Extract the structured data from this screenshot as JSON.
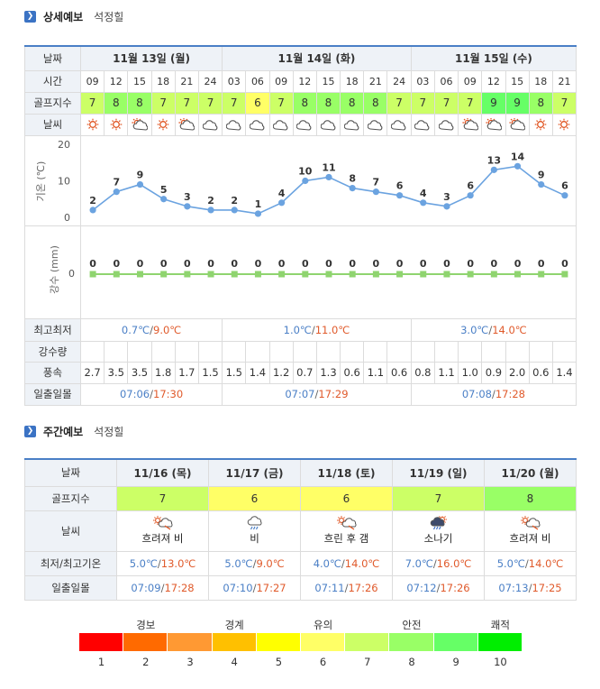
{
  "detail": {
    "title": "상세예보",
    "place": "석정힐",
    "labels": {
      "date": "날짜",
      "time": "시간",
      "golf": "골프지수",
      "weather": "날씨",
      "temp_axis": "기온 (℃)",
      "rain_axis": "강수 (mm)",
      "minmax": "최고최저",
      "rain": "강수량",
      "wind": "풍속",
      "sun": "일출일몰"
    },
    "days": [
      {
        "label": "11월 13일 (월)",
        "min": "0.7℃",
        "max": "9.0℃",
        "sunrise": "07:06",
        "sunset": "17:30"
      },
      {
        "label": "11월 14일 (화)",
        "min": "1.0℃",
        "max": "11.0℃",
        "sunrise": "07:07",
        "sunset": "17:29"
      },
      {
        "label": "11월 15일 (수)",
        "min": "3.0℃",
        "max": "14.0℃",
        "sunrise": "07:08",
        "sunset": "17:28"
      }
    ],
    "temp_ticks": [
      "20",
      "10",
      "0"
    ],
    "hours": [
      {
        "time": "09",
        "golf": "7",
        "icon": "sun",
        "temp": 2,
        "rain": "0",
        "wind": "2.7"
      },
      {
        "time": "12",
        "golf": "8",
        "icon": "sun",
        "temp": 7,
        "rain": "0",
        "wind": "3.5"
      },
      {
        "time": "15",
        "golf": "8",
        "icon": "partly",
        "temp": 9,
        "rain": "0",
        "wind": "3.5"
      },
      {
        "time": "18",
        "golf": "7",
        "icon": "sun",
        "temp": 5,
        "rain": "0",
        "wind": "1.8"
      },
      {
        "time": "21",
        "golf": "7",
        "icon": "partly",
        "temp": 3,
        "rain": "0",
        "wind": "1.7"
      },
      {
        "time": "24",
        "golf": "7",
        "icon": "cloud",
        "temp": 2,
        "rain": "0",
        "wind": "1.5"
      },
      {
        "time": "03",
        "golf": "7",
        "icon": "cloud",
        "temp": 2,
        "rain": "0",
        "wind": "1.5"
      },
      {
        "time": "06",
        "golf": "6",
        "icon": "cloud",
        "temp": 1,
        "rain": "0",
        "wind": "1.4"
      },
      {
        "time": "09",
        "golf": "7",
        "icon": "cloud",
        "temp": 4,
        "rain": "0",
        "wind": "1.2"
      },
      {
        "time": "12",
        "golf": "8",
        "icon": "cloud",
        "temp": 10,
        "rain": "0",
        "wind": "0.7"
      },
      {
        "time": "15",
        "golf": "8",
        "icon": "cloud",
        "temp": 11,
        "rain": "0",
        "wind": "1.3"
      },
      {
        "time": "18",
        "golf": "8",
        "icon": "cloud",
        "temp": 8,
        "rain": "0",
        "wind": "0.6"
      },
      {
        "time": "21",
        "golf": "8",
        "icon": "cloud",
        "temp": 7,
        "rain": "0",
        "wind": "1.1"
      },
      {
        "time": "24",
        "golf": "7",
        "icon": "cloud",
        "temp": 6,
        "rain": "0",
        "wind": "0.6"
      },
      {
        "time": "03",
        "golf": "7",
        "icon": "cloud",
        "temp": 4,
        "rain": "0",
        "wind": "0.8"
      },
      {
        "time": "06",
        "golf": "7",
        "icon": "cloud",
        "temp": 3,
        "rain": "0",
        "wind": "1.1"
      },
      {
        "time": "09",
        "golf": "7",
        "icon": "partly",
        "temp": 6,
        "rain": "0",
        "wind": "1.0"
      },
      {
        "time": "12",
        "golf": "9",
        "icon": "partly",
        "temp": 13,
        "rain": "0",
        "wind": "0.9"
      },
      {
        "time": "15",
        "golf": "9",
        "icon": "partly",
        "temp": 14,
        "rain": "0",
        "wind": "2.0"
      },
      {
        "time": "18",
        "golf": "8",
        "icon": "sun",
        "temp": 9,
        "rain": "0",
        "wind": "0.6"
      },
      {
        "time": "21",
        "golf": "7",
        "icon": "sun",
        "temp": 6,
        "rain": "0",
        "wind": "1.4"
      }
    ]
  },
  "weekly": {
    "title": "주간예보",
    "place": "석정힐",
    "labels": {
      "date": "날짜",
      "golf": "골프지수",
      "weather": "날씨",
      "temp": "최저/최고기온",
      "sun": "일출일몰"
    },
    "days": [
      {
        "date": "11/16 (목)",
        "golf": "7",
        "icon": "partly-rain",
        "desc": "흐려져 비",
        "min": "5.0℃",
        "max": "13.0℃",
        "sunrise": "07:09",
        "sunset": "17:28"
      },
      {
        "date": "11/17 (금)",
        "golf": "6",
        "icon": "rain",
        "desc": "비",
        "min": "5.0℃",
        "max": "9.0℃",
        "sunrise": "07:10",
        "sunset": "17:27"
      },
      {
        "date": "11/18 (토)",
        "golf": "6",
        "icon": "rain-clear",
        "desc": "흐린 후 갬",
        "min": "4.0℃",
        "max": "14.0℃",
        "sunrise": "07:11",
        "sunset": "17:26"
      },
      {
        "date": "11/19 (일)",
        "golf": "7",
        "icon": "shower",
        "desc": "소나기",
        "min": "7.0℃",
        "max": "16.0℃",
        "sunrise": "07:12",
        "sunset": "17:26"
      },
      {
        "date": "11/20 (월)",
        "golf": "8",
        "icon": "partly-rain",
        "desc": "흐려져 비",
        "min": "5.0℃",
        "max": "14.0℃",
        "sunrise": "07:13",
        "sunset": "17:25"
      }
    ]
  },
  "golf_colors": {
    "1": "#ff0000",
    "2": "#ff6a00",
    "3": "#ff9933",
    "4": "#ffc000",
    "5": "#ffff00",
    "6": "#ffff66",
    "7": "#ccff66",
    "8": "#99ff66",
    "9": "#66ff66",
    "10": "#00ee00"
  },
  "legend": {
    "words": [
      {
        "text": "경보",
        "at": 1.5
      },
      {
        "text": "경계",
        "at": 3.5
      },
      {
        "text": "유의",
        "at": 5.5
      },
      {
        "text": "안전",
        "at": 7.5
      },
      {
        "text": "쾌적",
        "at": 9.5
      }
    ],
    "levels": [
      "1",
      "2",
      "3",
      "4",
      "5",
      "6",
      "7",
      "8",
      "9",
      "10"
    ]
  },
  "colors": {
    "accent": "#3b73c4",
    "line": "#6ba3e0",
    "rain_bar": "#8fd46f",
    "min_temp": "#4a7fc6",
    "max_temp": "#e05a2b"
  }
}
